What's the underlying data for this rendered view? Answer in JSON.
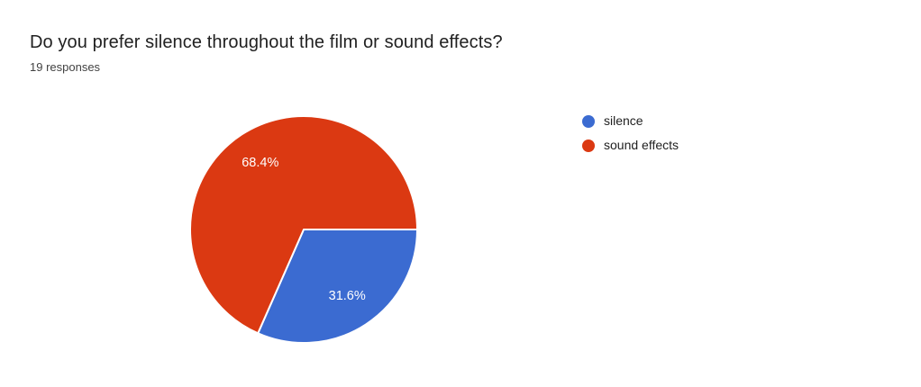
{
  "chart_data": {
    "type": "pie",
    "title": "Do you prefer silence throughout the film or sound effects?",
    "subtitle": "19 responses",
    "slices": [
      {
        "label": "silence",
        "percent": 31.6,
        "percent_label": "31.6%",
        "color": "#3B6BD1"
      },
      {
        "label": "sound effects",
        "percent": 68.4,
        "percent_label": "68.4%",
        "color": "#DB3912"
      }
    ],
    "start_angle_deg": 0,
    "direction": "clockwise",
    "legend_position": "right",
    "slice_label_color": "#FFFFFF",
    "slice_border_color": "#FFFFFF",
    "label_radius_ratio": 0.7
  }
}
